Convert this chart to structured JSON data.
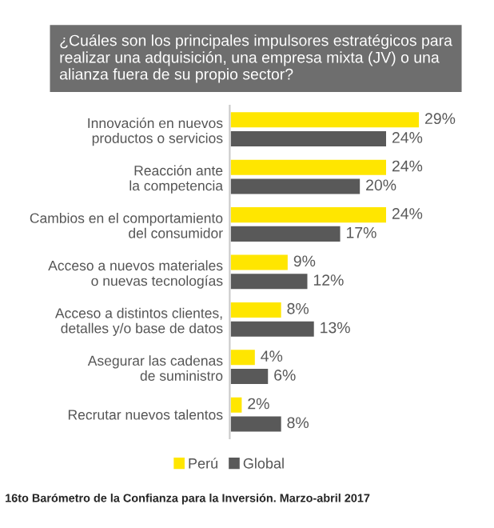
{
  "chart_data": {
    "type": "bar",
    "orientation": "horizontal",
    "title": "¿Cuáles son los principales impulsores estratégicos para realizar una adquisición, una empresa mixta (JV) o una alianza fuera de su propio sector?",
    "categories": [
      "Innovación en nuevos\nproductos o servicios",
      "Reacción ante\nla competencia",
      "Cambios en el comportamiento\ndel consumidor",
      "Acceso a nuevos materiales\no nuevas tecnologías",
      "Acceso a distintos clientes,\ndetalles y/o base de datos",
      "Asegurar las cadenas\nde suministro",
      "Recrutar nuevos talentos"
    ],
    "series": [
      {
        "name": "Perú",
        "color": "#ffe600",
        "values": [
          29,
          24,
          24,
          9,
          8,
          4,
          2
        ],
        "value_labels": [
          "29%",
          "24%",
          "24%",
          "9%",
          "8%",
          "4%",
          "2%"
        ]
      },
      {
        "name": "Global",
        "color": "#595959",
        "values": [
          24,
          20,
          17,
          12,
          13,
          6,
          8
        ],
        "value_labels": [
          "24%",
          "20%",
          "17%",
          "12%",
          "13%",
          "6%",
          "8%"
        ]
      }
    ],
    "legend": "bottom",
    "grid": false,
    "annotations": [
      "16to Barómetro de la Confianza para la Inversión. Marzo-abril 2017"
    ]
  }
}
